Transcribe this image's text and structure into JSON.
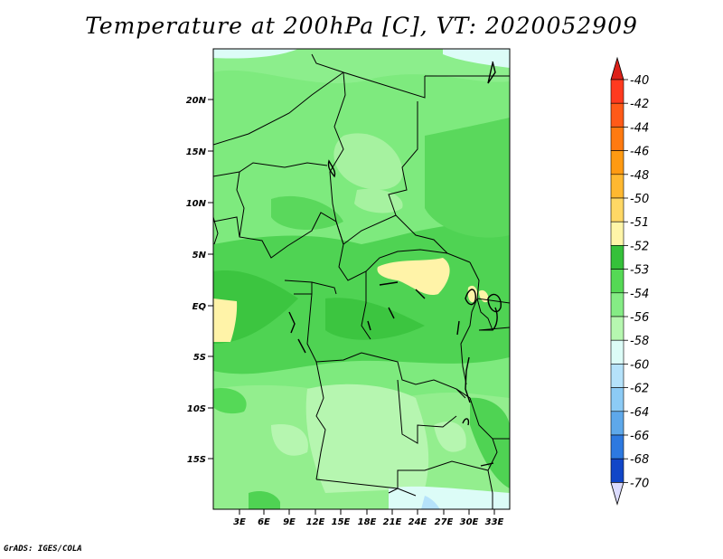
{
  "title": "Temperature at 200hPa [C], VT: 2020052909",
  "credit": "GrADS: IGES/COLA",
  "map": {
    "lat_labels": [
      "20N",
      "15N",
      "10N",
      "5N",
      "EQ",
      "5S",
      "10S",
      "15S"
    ],
    "lon_labels": [
      "3E",
      "6E",
      "9E",
      "12E",
      "15E",
      "18E",
      "21E",
      "24E",
      "27E",
      "30E",
      "33E"
    ]
  },
  "colorbar": {
    "levels": [
      {
        "label": "-40",
        "color": "#ff3a1f"
      },
      {
        "label": "-42",
        "color": "#ff5a18"
      },
      {
        "label": "-44",
        "color": "#ff7a10"
      },
      {
        "label": "-46",
        "color": "#ff9a12"
      },
      {
        "label": "-48",
        "color": "#ffb830"
      },
      {
        "label": "-50",
        "color": "#ffd865"
      },
      {
        "label": "-51",
        "color": "#fff5a8"
      },
      {
        "label": "-52",
        "color": "#35c13a"
      },
      {
        "label": "-53",
        "color": "#55d955"
      },
      {
        "label": "-54",
        "color": "#85ec85"
      },
      {
        "label": "-56",
        "color": "#b6f7b0"
      },
      {
        "label": "-58",
        "color": "#dcfcf7"
      },
      {
        "label": "-60",
        "color": "#b5e2fa"
      },
      {
        "label": "-62",
        "color": "#8ccbf5"
      },
      {
        "label": "-64",
        "color": "#5ea8ea"
      },
      {
        "label": "-66",
        "color": "#2d79e0"
      },
      {
        "label": "-68",
        "color": "#1146c8"
      },
      {
        "label": "-70",
        "color": "#0a1e9c"
      }
    ],
    "top_cap_color": "#dc2018",
    "bottom_cap_color": "#dcdcff",
    "bottom_label": "-70"
  }
}
